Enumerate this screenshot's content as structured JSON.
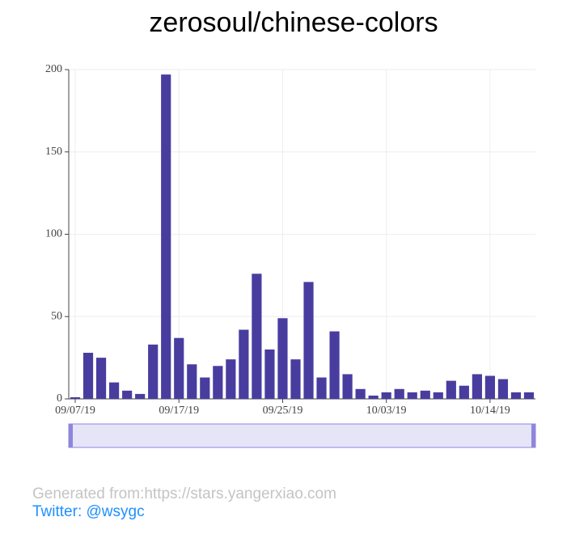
{
  "chart_data": {
    "type": "bar",
    "title": "zerosoul/chinese-colors",
    "categories": [
      "09/07/19",
      null,
      null,
      null,
      null,
      null,
      null,
      null,
      "09/17/19",
      null,
      null,
      null,
      null,
      null,
      null,
      null,
      "09/25/19",
      null,
      null,
      null,
      null,
      null,
      null,
      null,
      "10/03/19",
      null,
      null,
      null,
      null,
      null,
      null,
      null,
      "10/14/19",
      null,
      null,
      null
    ],
    "values": [
      1,
      28,
      25,
      10,
      5,
      3,
      33,
      197,
      37,
      21,
      13,
      20,
      24,
      42,
      76,
      30,
      49,
      24,
      71,
      13,
      41,
      15,
      6,
      2,
      4,
      6,
      4,
      5,
      4,
      11,
      8,
      15,
      14,
      12,
      4,
      4
    ],
    "color": "#483d9f",
    "ylim": [
      0,
      200
    ],
    "yticks": [
      0,
      50,
      100,
      150,
      200
    ],
    "grid": true
  },
  "footer": {
    "source": "Generated from:https://stars.yangerxiao.com",
    "twitter": "Twitter: @wsygc"
  }
}
